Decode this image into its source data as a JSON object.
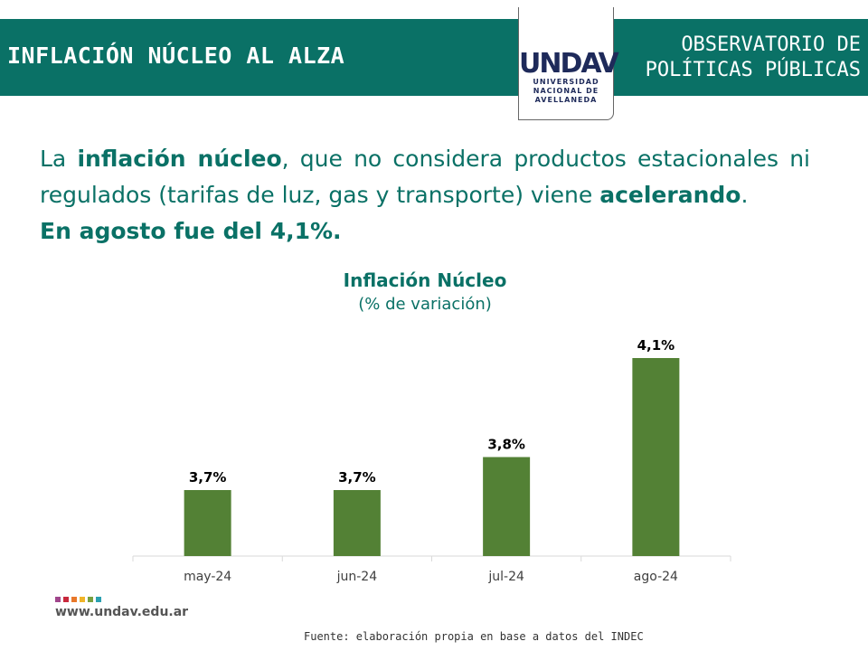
{
  "header": {
    "title": "INFLACIÓN NÚCLEO AL ALZA",
    "org_line1": "OBSERVATORIO DE",
    "org_line2": "POLÍTICAS PÚBLICAS",
    "brand_color": "#0a7166"
  },
  "logo": {
    "mark": "UNDAV",
    "line1": "UNIVERSIDAD",
    "line2": "NACIONAL DE",
    "line3": "AVELLANEDA"
  },
  "lead": {
    "p1": "La ",
    "b1": "inflación núcleo",
    "p2": ", que no considera productos estacionales ni regulados (tarifas de luz, gas y transporte) viene ",
    "b2": "acelerando",
    "p3": ".",
    "line3": "En agosto fue del 4,1%."
  },
  "chart_data": {
    "type": "bar",
    "title": "Inflación Núcleo",
    "subtitle": "(% de variación)",
    "categories": [
      "may-24",
      "jun-24",
      "jul-24",
      "ago-24"
    ],
    "values": [
      3.7,
      3.7,
      3.8,
      4.1
    ],
    "data_labels": [
      "3,7%",
      "3,7%",
      "3,8%",
      "4,1%"
    ],
    "ylim": [
      3.5,
      4.2
    ],
    "bar_color": "#538135",
    "grid": false
  },
  "footer": {
    "url": "www.undav.edu.ar",
    "source": "Fuente: elaboración propia en base a datos del INDEC",
    "dot_colors": [
      "#a0468c",
      "#c8283c",
      "#e8782a",
      "#f0b428",
      "#78a040",
      "#2aa0b0"
    ]
  }
}
